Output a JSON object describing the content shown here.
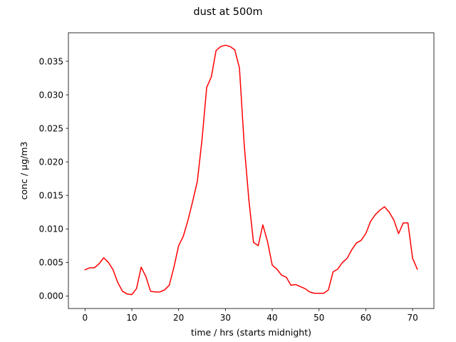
{
  "chart_data": {
    "type": "line",
    "title": "dust at 500m",
    "xlabel": "time / hrs (starts midnight)",
    "ylabel": "conc / µg/m3",
    "xlim": [
      -3.55,
      74.55
    ],
    "ylim": [
      -0.00187,
      0.03925
    ],
    "xticks": [
      0,
      10,
      20,
      30,
      40,
      50,
      60,
      70
    ],
    "yticks": [
      0.0,
      0.005,
      0.01,
      0.015,
      0.02,
      0.025,
      0.03,
      0.035
    ],
    "ytick_labels": [
      "0.000",
      "0.005",
      "0.010",
      "0.015",
      "0.020",
      "0.025",
      "0.030",
      "0.035"
    ],
    "grid": false,
    "series": [
      {
        "color": "#ff0000",
        "x": [
          0,
          1,
          2,
          3,
          4,
          5,
          6,
          7,
          8,
          9,
          10,
          11,
          12,
          13,
          14,
          15,
          16,
          17,
          18,
          19,
          20,
          21,
          22,
          23,
          24,
          25,
          26,
          27,
          28,
          29,
          30,
          31,
          32,
          33,
          34,
          35,
          36,
          37,
          38,
          39,
          40,
          41,
          42,
          43,
          44,
          45,
          46,
          47,
          48,
          49,
          50,
          51,
          52,
          53,
          54,
          55,
          56,
          57,
          58,
          59,
          60,
          61,
          62,
          63,
          64,
          65,
          66,
          67,
          68,
          69,
          70,
          71
        ],
        "y": [
          0.0039,
          0.0042,
          0.0042,
          0.0048,
          0.0057,
          0.005,
          0.0039,
          0.002,
          0.0007,
          0.0003,
          0.0002,
          0.0011,
          0.0043,
          0.0029,
          0.0007,
          0.0006,
          0.0006,
          0.0009,
          0.0016,
          0.0043,
          0.0075,
          0.0089,
          0.0113,
          0.0141,
          0.0171,
          0.0233,
          0.0311,
          0.0327,
          0.0366,
          0.0372,
          0.0374,
          0.0372,
          0.0367,
          0.034,
          0.0227,
          0.0144,
          0.008,
          0.0075,
          0.0106,
          0.0081,
          0.0046,
          0.004,
          0.0031,
          0.0028,
          0.0016,
          0.0017,
          0.0014,
          0.0011,
          0.0006,
          0.0004,
          0.0004,
          0.0004,
          0.0009,
          0.0036,
          0.004,
          0.005,
          0.0056,
          0.0069,
          0.0079,
          0.0083,
          0.0093,
          0.0111,
          0.0121,
          0.0128,
          0.0133,
          0.0125,
          0.0113,
          0.0093,
          0.0109,
          0.0109,
          0.0056,
          0.004
        ]
      }
    ]
  }
}
